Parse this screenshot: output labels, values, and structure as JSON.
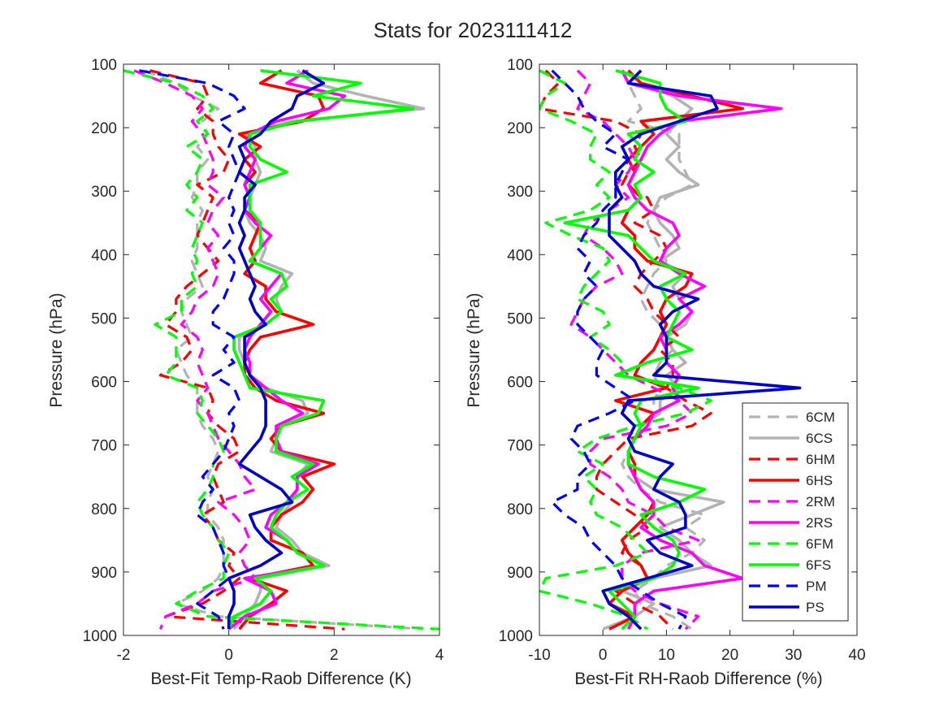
{
  "figure": {
    "title": "Stats for 2023111412"
  },
  "legend": [
    {
      "name": "6CM",
      "color": "#b3b3b3",
      "dash": true
    },
    {
      "name": "6CS",
      "color": "#b3b3b3",
      "dash": false
    },
    {
      "name": "6HM",
      "color": "#ff0000",
      "dash": true
    },
    {
      "name": "6HS",
      "color": "#ff0000",
      "dash": false
    },
    {
      "name": "2RM",
      "color": "#ff00ff",
      "dash": true
    },
    {
      "name": "2RS",
      "color": "#ff00ff",
      "dash": false
    },
    {
      "name": "6FM",
      "color": "#00ff00",
      "dash": true
    },
    {
      "name": "6FS",
      "color": "#00ff00",
      "dash": false
    },
    {
      "name": "PM",
      "color": "#0000ff",
      "dash": true
    },
    {
      "name": "PS",
      "color": "#0000cc",
      "dash": false
    }
  ],
  "chart_data": [
    {
      "type": "line",
      "xlabel": "Best-Fit Temp-Raob Difference (K)",
      "ylabel": "Pressure (hPa)",
      "xlim": [
        -2,
        4
      ],
      "ylim": [
        100,
        1000
      ],
      "y_reversed": true,
      "xticks": [
        "-2",
        "0",
        "2",
        "4"
      ],
      "yticks": [
        "100",
        "200",
        "300",
        "400",
        "500",
        "600",
        "700",
        "800",
        "900",
        "1000"
      ],
      "pressure": [
        110,
        130,
        150,
        170,
        190,
        210,
        230,
        250,
        270,
        290,
        310,
        330,
        350,
        370,
        390,
        410,
        430,
        450,
        470,
        490,
        510,
        530,
        550,
        570,
        590,
        610,
        630,
        650,
        670,
        690,
        710,
        730,
        750,
        770,
        790,
        810,
        830,
        850,
        870,
        890,
        910,
        930,
        950,
        970,
        990
      ],
      "series": [
        {
          "name": "6CM",
          "values": [
            -1.6,
            -1.0,
            -0.7,
            -0.2,
            -0.5,
            -0.4,
            -0.6,
            -0.4,
            -0.6,
            -0.6,
            -0.7,
            -0.5,
            -0.6,
            -0.6,
            -0.6,
            -0.7,
            -0.6,
            -0.5,
            -0.8,
            -0.9,
            -0.8,
            -0.7,
            -1.0,
            -0.9,
            -0.8,
            -0.6,
            -0.6,
            -0.6,
            -0.5,
            -0.3,
            -0.2,
            -0.3,
            -0.4,
            -0.3,
            -0.4,
            -0.4,
            -0.2,
            -0.1,
            -0.1,
            -0.1,
            -0.2,
            -0.5,
            -1.0,
            -0.2,
            3.7
          ]
        },
        {
          "name": "6CS",
          "values": [
            1.3,
            1.6,
            2.6,
            3.7,
            1.2,
            0.3,
            0.5,
            0.5,
            0.6,
            0.5,
            0.4,
            0.3,
            0.4,
            0.6,
            0.7,
            0.6,
            1.2,
            1.0,
            0.9,
            1.0,
            0.7,
            0.2,
            0.2,
            0.3,
            0.3,
            0.7,
            1.4,
            1.5,
            1.0,
            0.9,
            0.8,
            1.5,
            1.3,
            1.3,
            1.2,
            1.0,
            0.9,
            1.2,
            1.4,
            1.9,
            0.6,
            0.6,
            0.5,
            0.3,
            0.1
          ]
        },
        {
          "name": "6HM",
          "values": [
            -1.5,
            -0.5,
            -0.4,
            -0.6,
            -0.3,
            -0.3,
            -0.2,
            0.0,
            -0.1,
            -0.6,
            -0.3,
            -0.4,
            -0.5,
            -0.6,
            -0.4,
            -0.2,
            -0.5,
            -0.8,
            -1.0,
            -1.0,
            -1.2,
            -0.8,
            -0.7,
            -0.9,
            -1.3,
            -0.4,
            -0.3,
            -0.4,
            -0.2,
            0.1,
            0.2,
            -0.2,
            -0.3,
            -0.2,
            -0.1,
            -0.5,
            -0.3,
            -0.2,
            0.1,
            0.0,
            0.2,
            -0.1,
            -0.5,
            -1.2,
            2.2
          ]
        },
        {
          "name": "6HS",
          "values": [
            1.0,
            0.6,
            1.7,
            1.8,
            1.4,
            0.2,
            0.6,
            0.3,
            0.5,
            0.3,
            0.4,
            0.3,
            0.6,
            0.5,
            0.4,
            0.5,
            0.3,
            0.7,
            0.7,
            0.9,
            1.6,
            0.6,
            0.4,
            0.3,
            0.3,
            0.5,
            0.9,
            1.8,
            1.0,
            0.8,
            1.0,
            2.0,
            1.4,
            1.6,
            1.4,
            1.0,
            0.8,
            0.8,
            1.4,
            1.6,
            0.4,
            1.1,
            0.8,
            0.4,
            0.2
          ]
        },
        {
          "name": "2RM",
          "values": [
            -1.8,
            -1.2,
            -0.7,
            -0.5,
            -0.7,
            -0.5,
            -0.4,
            -0.3,
            -0.3,
            -0.4,
            -0.1,
            -0.3,
            -0.4,
            -0.2,
            -0.4,
            -0.3,
            -0.2,
            -0.3,
            -0.6,
            -0.7,
            -0.9,
            -0.6,
            -0.5,
            -0.6,
            -0.5,
            -0.4,
            -0.6,
            -0.4,
            -0.3,
            -0.2,
            0.0,
            0.2,
            0.3,
            0.5,
            -0.2,
            0.1,
            0.3,
            0.4,
            0.2,
            0.3,
            0.5,
            -0.3,
            -0.6,
            -1.2,
            -1.3
          ]
        },
        {
          "name": "2RS",
          "values": [
            1.5,
            1.1,
            2.2,
            1.9,
            0.9,
            0.4,
            0.3,
            0.5,
            0.4,
            0.3,
            0.4,
            0.3,
            0.5,
            0.8,
            0.6,
            0.4,
            1.0,
            0.8,
            0.6,
            0.8,
            0.6,
            0.4,
            0.3,
            0.4,
            0.4,
            0.7,
            1.0,
            1.4,
            0.9,
            0.9,
            1.0,
            1.7,
            1.3,
            1.3,
            1.1,
            0.8,
            0.7,
            1.1,
            1.3,
            1.8,
            0.3,
            0.8,
            0.9,
            0.3,
            0.0
          ]
        },
        {
          "name": "6FM",
          "values": [
            -2.2,
            -1.0,
            -0.5,
            -0.3,
            -0.6,
            -0.4,
            -0.8,
            -0.5,
            -0.6,
            -0.8,
            -0.6,
            -0.8,
            -0.5,
            -0.6,
            -0.7,
            -0.6,
            -0.7,
            -0.6,
            -0.9,
            -0.9,
            -1.4,
            -1.0,
            -1.0,
            -1.0,
            -1.2,
            -0.6,
            -0.5,
            -0.6,
            -0.4,
            -0.2,
            -0.1,
            -0.3,
            -0.3,
            -0.4,
            -0.6,
            -0.5,
            -0.3,
            -0.2,
            0.0,
            -0.1,
            -0.1,
            -0.6,
            -1.0,
            -0.4,
            4.0
          ]
        },
        {
          "name": "6FS",
          "values": [
            0.6,
            2.5,
            1.6,
            3.5,
            1.3,
            0.4,
            0.4,
            0.6,
            1.1,
            0.4,
            0.4,
            0.4,
            0.6,
            0.6,
            0.6,
            0.4,
            1.0,
            1.1,
            0.8,
            1.0,
            0.7,
            0.1,
            0.1,
            0.2,
            0.3,
            0.4,
            1.8,
            1.7,
            1.0,
            0.9,
            0.9,
            1.6,
            1.2,
            1.5,
            1.1,
            0.9,
            0.8,
            1.1,
            1.3,
            1.8,
            0.5,
            0.8,
            0.6,
            0.1,
            0.0
          ]
        },
        {
          "name": "PM",
          "values": [
            -1.7,
            -0.4,
            0.1,
            0.3,
            -0.2,
            0.1,
            0.0,
            0.1,
            0.2,
            0.1,
            0.0,
            0.1,
            0.0,
            0.1,
            -0.1,
            0.1,
            0.1,
            0.0,
            -0.1,
            -0.3,
            -0.3,
            0.1,
            -0.1,
            0.1,
            -0.3,
            0.1,
            0.2,
            0.0,
            0.1,
            0.0,
            -0.1,
            -0.3,
            -0.5,
            -0.3,
            -0.5,
            -0.6,
            -0.3,
            -0.2,
            -0.1,
            -0.1,
            0.0,
            -0.3,
            -0.6,
            -0.2,
            -0.1
          ]
        },
        {
          "name": "PS",
          "values": [
            1.4,
            1.8,
            1.3,
            1.2,
            0.8,
            0.6,
            0.2,
            0.3,
            0.2,
            0.5,
            0.3,
            0.3,
            0.2,
            0.3,
            0.2,
            0.3,
            0.4,
            0.5,
            0.4,
            0.5,
            0.7,
            0.3,
            0.3,
            0.3,
            0.4,
            0.6,
            0.7,
            0.7,
            0.7,
            0.6,
            0.4,
            0.2,
            0.6,
            1.0,
            1.2,
            0.4,
            0.5,
            0.7,
            1.0,
            0.6,
            0.0,
            0.1,
            0.1,
            0.0,
            0.0
          ]
        }
      ]
    },
    {
      "type": "line",
      "xlabel": "Best-Fit RH-Raob Difference (%)",
      "ylabel": "Pressure (hPa)",
      "xlim": [
        -10,
        40
      ],
      "ylim": [
        100,
        1000
      ],
      "y_reversed": true,
      "xticks": [
        "-10",
        "0",
        "10",
        "20",
        "30",
        "40"
      ],
      "yticks": [
        "100",
        "200",
        "300",
        "400",
        "500",
        "600",
        "700",
        "800",
        "900",
        "1000"
      ],
      "pressure": [
        110,
        130,
        150,
        170,
        190,
        210,
        230,
        250,
        270,
        290,
        310,
        330,
        350,
        370,
        390,
        410,
        430,
        450,
        470,
        490,
        510,
        530,
        550,
        570,
        590,
        610,
        630,
        650,
        670,
        690,
        710,
        730,
        750,
        770,
        790,
        810,
        830,
        850,
        870,
        890,
        910,
        930,
        950,
        970,
        990
      ],
      "series": [
        {
          "name": "6CM",
          "values": [
            3,
            4,
            5,
            6,
            4,
            12,
            12,
            12,
            13,
            14,
            10,
            8,
            7,
            8,
            9,
            10,
            8,
            7,
            6,
            7,
            9,
            10,
            11,
            9,
            8,
            9,
            8,
            8,
            6,
            5,
            4,
            3,
            4,
            6,
            9,
            16,
            13,
            16,
            14,
            10,
            8,
            5,
            6,
            11,
            14
          ]
        },
        {
          "name": "6CS",
          "values": [
            3,
            6,
            11,
            14,
            12,
            10,
            12,
            10,
            12,
            15,
            9,
            8,
            9,
            11,
            12,
            9,
            13,
            11,
            12,
            14,
            13,
            10,
            11,
            13,
            10,
            12,
            9,
            9,
            6,
            5,
            4,
            4,
            5,
            8,
            19,
            14,
            9,
            12,
            14,
            17,
            8,
            3,
            8,
            5,
            0
          ]
        },
        {
          "name": "6HM",
          "values": [
            -9,
            -7,
            -9,
            -11,
            2,
            6,
            5,
            6,
            4,
            3,
            7,
            8,
            5,
            9,
            10,
            8,
            6,
            5,
            7,
            8,
            10,
            12,
            9,
            11,
            11,
            10,
            13,
            17,
            14,
            4,
            2,
            0,
            -1,
            -1,
            2,
            5,
            7,
            4,
            3,
            6,
            7,
            2,
            5,
            9,
            11
          ]
        },
        {
          "name": "6HS",
          "values": [
            4,
            6,
            14,
            22,
            6,
            8,
            6,
            4,
            5,
            4,
            6,
            4,
            3,
            5,
            5,
            7,
            14,
            13,
            10,
            9,
            10,
            9,
            8,
            6,
            5,
            10,
            2,
            8,
            6,
            5,
            4,
            5,
            5,
            6,
            8,
            7,
            5,
            3,
            4,
            6,
            7,
            3,
            1,
            5,
            1
          ]
        },
        {
          "name": "2RM",
          "values": [
            -4,
            -2,
            -3,
            -4,
            0,
            2,
            4,
            5,
            4,
            2,
            4,
            1,
            -2,
            -3,
            0,
            2,
            3,
            -1,
            -3,
            -4,
            -5,
            -2,
            0,
            2,
            4,
            8,
            12,
            14,
            10,
            0,
            -2,
            -2,
            1,
            3,
            4,
            8,
            10,
            15,
            6,
            3,
            3,
            5,
            9,
            15,
            13
          ]
        },
        {
          "name": "2RS",
          "values": [
            3,
            4,
            12,
            28,
            12,
            9,
            7,
            6,
            5,
            4,
            5,
            7,
            11,
            12,
            10,
            9,
            12,
            16,
            12,
            14,
            12,
            9,
            10,
            10,
            12,
            11,
            12,
            8,
            7,
            5,
            4,
            4,
            5,
            6,
            8,
            8,
            6,
            9,
            14,
            16,
            22,
            8,
            5,
            5,
            4
          ]
        },
        {
          "name": "6FM",
          "values": [
            -11,
            -6,
            -9,
            -11,
            -5,
            -1,
            -2,
            -2,
            1,
            -1,
            1,
            -2,
            -9,
            -5,
            0,
            1,
            -1,
            -3,
            -4,
            0,
            1,
            -2,
            1,
            3,
            3,
            12,
            17,
            13,
            5,
            -1,
            -4,
            0,
            -3,
            -1,
            -2,
            -1,
            3,
            5,
            7,
            2,
            -9,
            -10,
            -2,
            4,
            7
          ]
        },
        {
          "name": "6FS",
          "values": [
            2,
            9,
            9,
            10,
            13,
            4,
            6,
            5,
            8,
            5,
            6,
            4,
            -6,
            4,
            6,
            8,
            13,
            9,
            10,
            12,
            11,
            10,
            14,
            7,
            2,
            15,
            6,
            5,
            6,
            5,
            4,
            4,
            8,
            16,
            12,
            6,
            8,
            11,
            12,
            11,
            8,
            1,
            3,
            5,
            3
          ]
        },
        {
          "name": "PM",
          "values": [
            -8,
            -6,
            -4,
            -3,
            -1,
            2,
            0,
            4,
            3,
            2,
            2,
            0,
            -1,
            -3,
            -4,
            -2,
            -3,
            -1,
            -3,
            -4,
            -4,
            -2,
            0,
            -1,
            -1,
            2,
            5,
            1,
            -4,
            -5,
            -3,
            -2,
            -4,
            -4,
            -8,
            -6,
            -3,
            -2,
            0,
            2,
            3,
            6,
            9,
            13,
            12
          ]
        },
        {
          "name": "PS",
          "values": [
            6,
            4,
            17,
            18,
            12,
            6,
            3,
            4,
            2,
            2,
            3,
            1,
            1,
            1,
            3,
            5,
            6,
            8,
            15,
            11,
            9,
            10,
            10,
            10,
            8,
            31,
            4,
            3,
            5,
            4,
            5,
            11,
            9,
            8,
            12,
            13,
            13,
            7,
            9,
            14,
            7,
            0,
            1,
            4,
            6
          ]
        }
      ]
    }
  ]
}
